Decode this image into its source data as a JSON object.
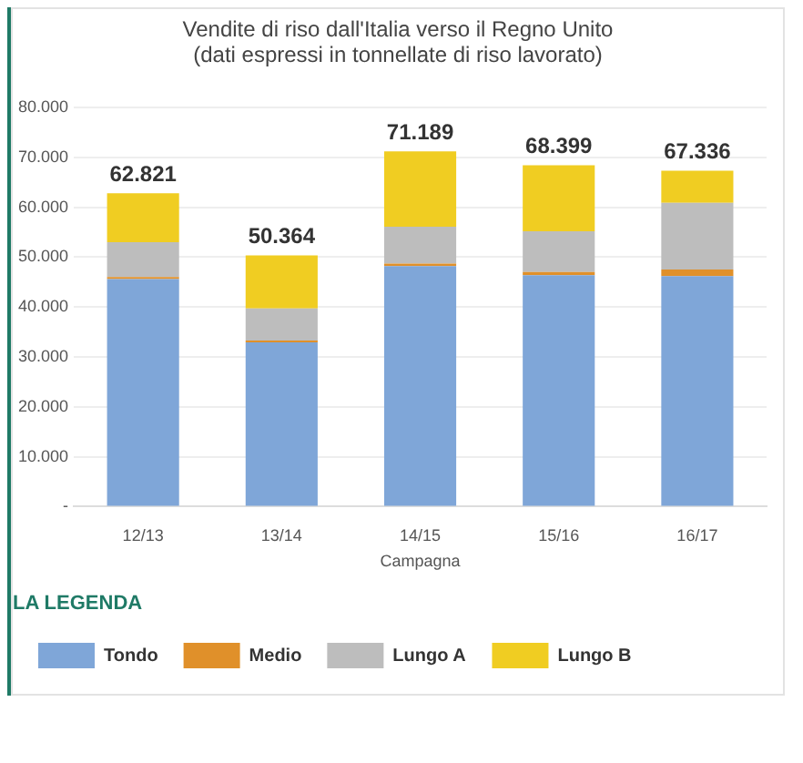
{
  "chart_data": {
    "type": "bar",
    "title": "Vendite di riso dall'Italia verso il Regno Unito",
    "subtitle": "(dati espressi in tonnellate di riso lavorato)",
    "xlabel": "Campagna",
    "legend_title": "LA LEGENDA",
    "categories": [
      "12/13",
      "13/14",
      "14/15",
      "15/16",
      "16/17"
    ],
    "series": [
      {
        "name": "Tondo",
        "color": "#7fa6d8",
        "values": [
          45600,
          32900,
          48200,
          46400,
          46200
        ]
      },
      {
        "name": "Medio",
        "color": "#e0902a",
        "values": [
          400,
          400,
          500,
          600,
          1300
        ]
      },
      {
        "name": "Lungo A",
        "color": "#bdbdbd",
        "values": [
          7000,
          6400,
          7400,
          8200,
          13400
        ]
      },
      {
        "name": "Lungo B",
        "color": "#f0cd22",
        "values": [
          9821,
          10664,
          15089,
          13199,
          6436
        ]
      }
    ],
    "stacked": true,
    "totals": [
      "62.821",
      "50.364",
      "71.189",
      "68.399",
      "67.336"
    ],
    "ylim": [
      0,
      80000
    ],
    "yticks": [
      {
        "value": 0,
        "label": "-"
      },
      {
        "value": 10000,
        "label": "10.000"
      },
      {
        "value": 20000,
        "label": "20.000"
      },
      {
        "value": 30000,
        "label": "30.000"
      },
      {
        "value": 40000,
        "label": "40.000"
      },
      {
        "value": 50000,
        "label": "50.000"
      },
      {
        "value": 60000,
        "label": "60.000"
      },
      {
        "value": 70000,
        "label": "70.000"
      },
      {
        "value": 80000,
        "label": "80.000"
      }
    ],
    "grid": "y",
    "legend": "bottom"
  }
}
